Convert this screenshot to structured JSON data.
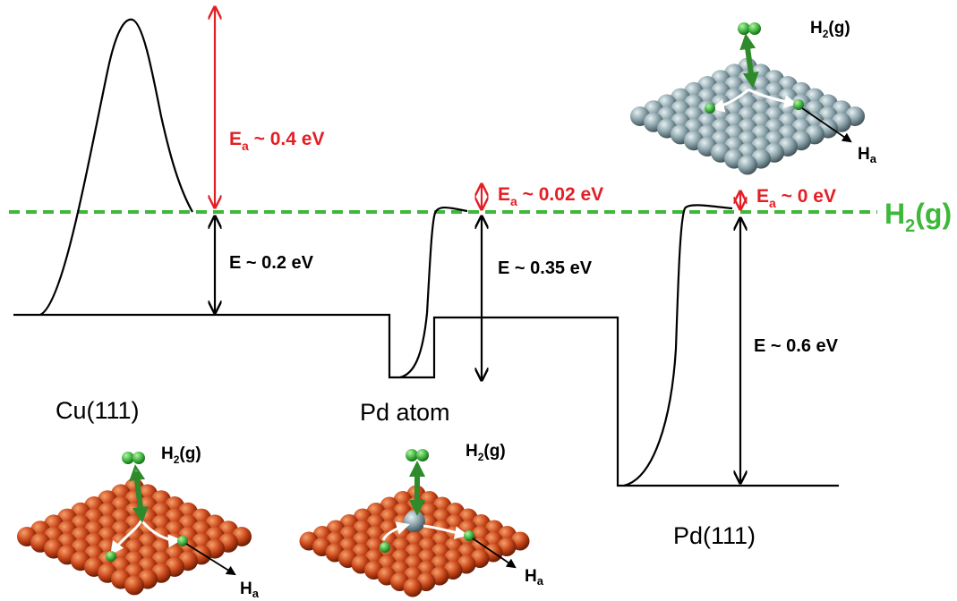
{
  "colors": {
    "energy_curve": "#000000",
    "barrier_arrow": "#e31e24",
    "h2_reference_line": "#3db83a",
    "copper_atom": "#c8461a",
    "palladium_atom": "#8aa2aa",
    "hydrogen_atom": "#3fb540",
    "diffusion_arrow": "#ffffff"
  },
  "surfaces": {
    "cu": {
      "label": "Cu(111)"
    },
    "pd_atom": {
      "label": "Pd atom"
    },
    "pd": {
      "label": "Pd(111)"
    }
  },
  "reference": {
    "h2_prefix": "H",
    "h2_sub": "2",
    "h2_suffix": "(g)"
  },
  "annotations": {
    "cu_barrier": {
      "prefix": "E",
      "sub": "a",
      "value": " ~ 0.4 eV"
    },
    "cu_energy": "E ~ 0.2 eV",
    "pdatom_barrier": {
      "prefix": "E",
      "sub": "a",
      "value": " ~ 0.02 eV"
    },
    "pdatom_energy": "E ~ 0.35 eV",
    "pd_barrier": {
      "prefix": "E",
      "sub": "a",
      "value": " ~ 0 eV"
    },
    "pd_energy": "E ~ 0.6 eV"
  },
  "insets": {
    "cu": {
      "h2_prefix": "H",
      "h2_sub": "2",
      "h2_suffix": "(g)",
      "ha_prefix": "H",
      "ha_sub": "a"
    },
    "pd_atom": {
      "h2_prefix": "H",
      "h2_sub": "2",
      "h2_suffix": "(g)",
      "ha_prefix": "H",
      "ha_sub": "a"
    },
    "pd": {
      "h2_prefix": "H",
      "h2_sub": "2",
      "h2_suffix": "(g)",
      "ha_prefix": "H",
      "ha_sub": "a"
    }
  }
}
